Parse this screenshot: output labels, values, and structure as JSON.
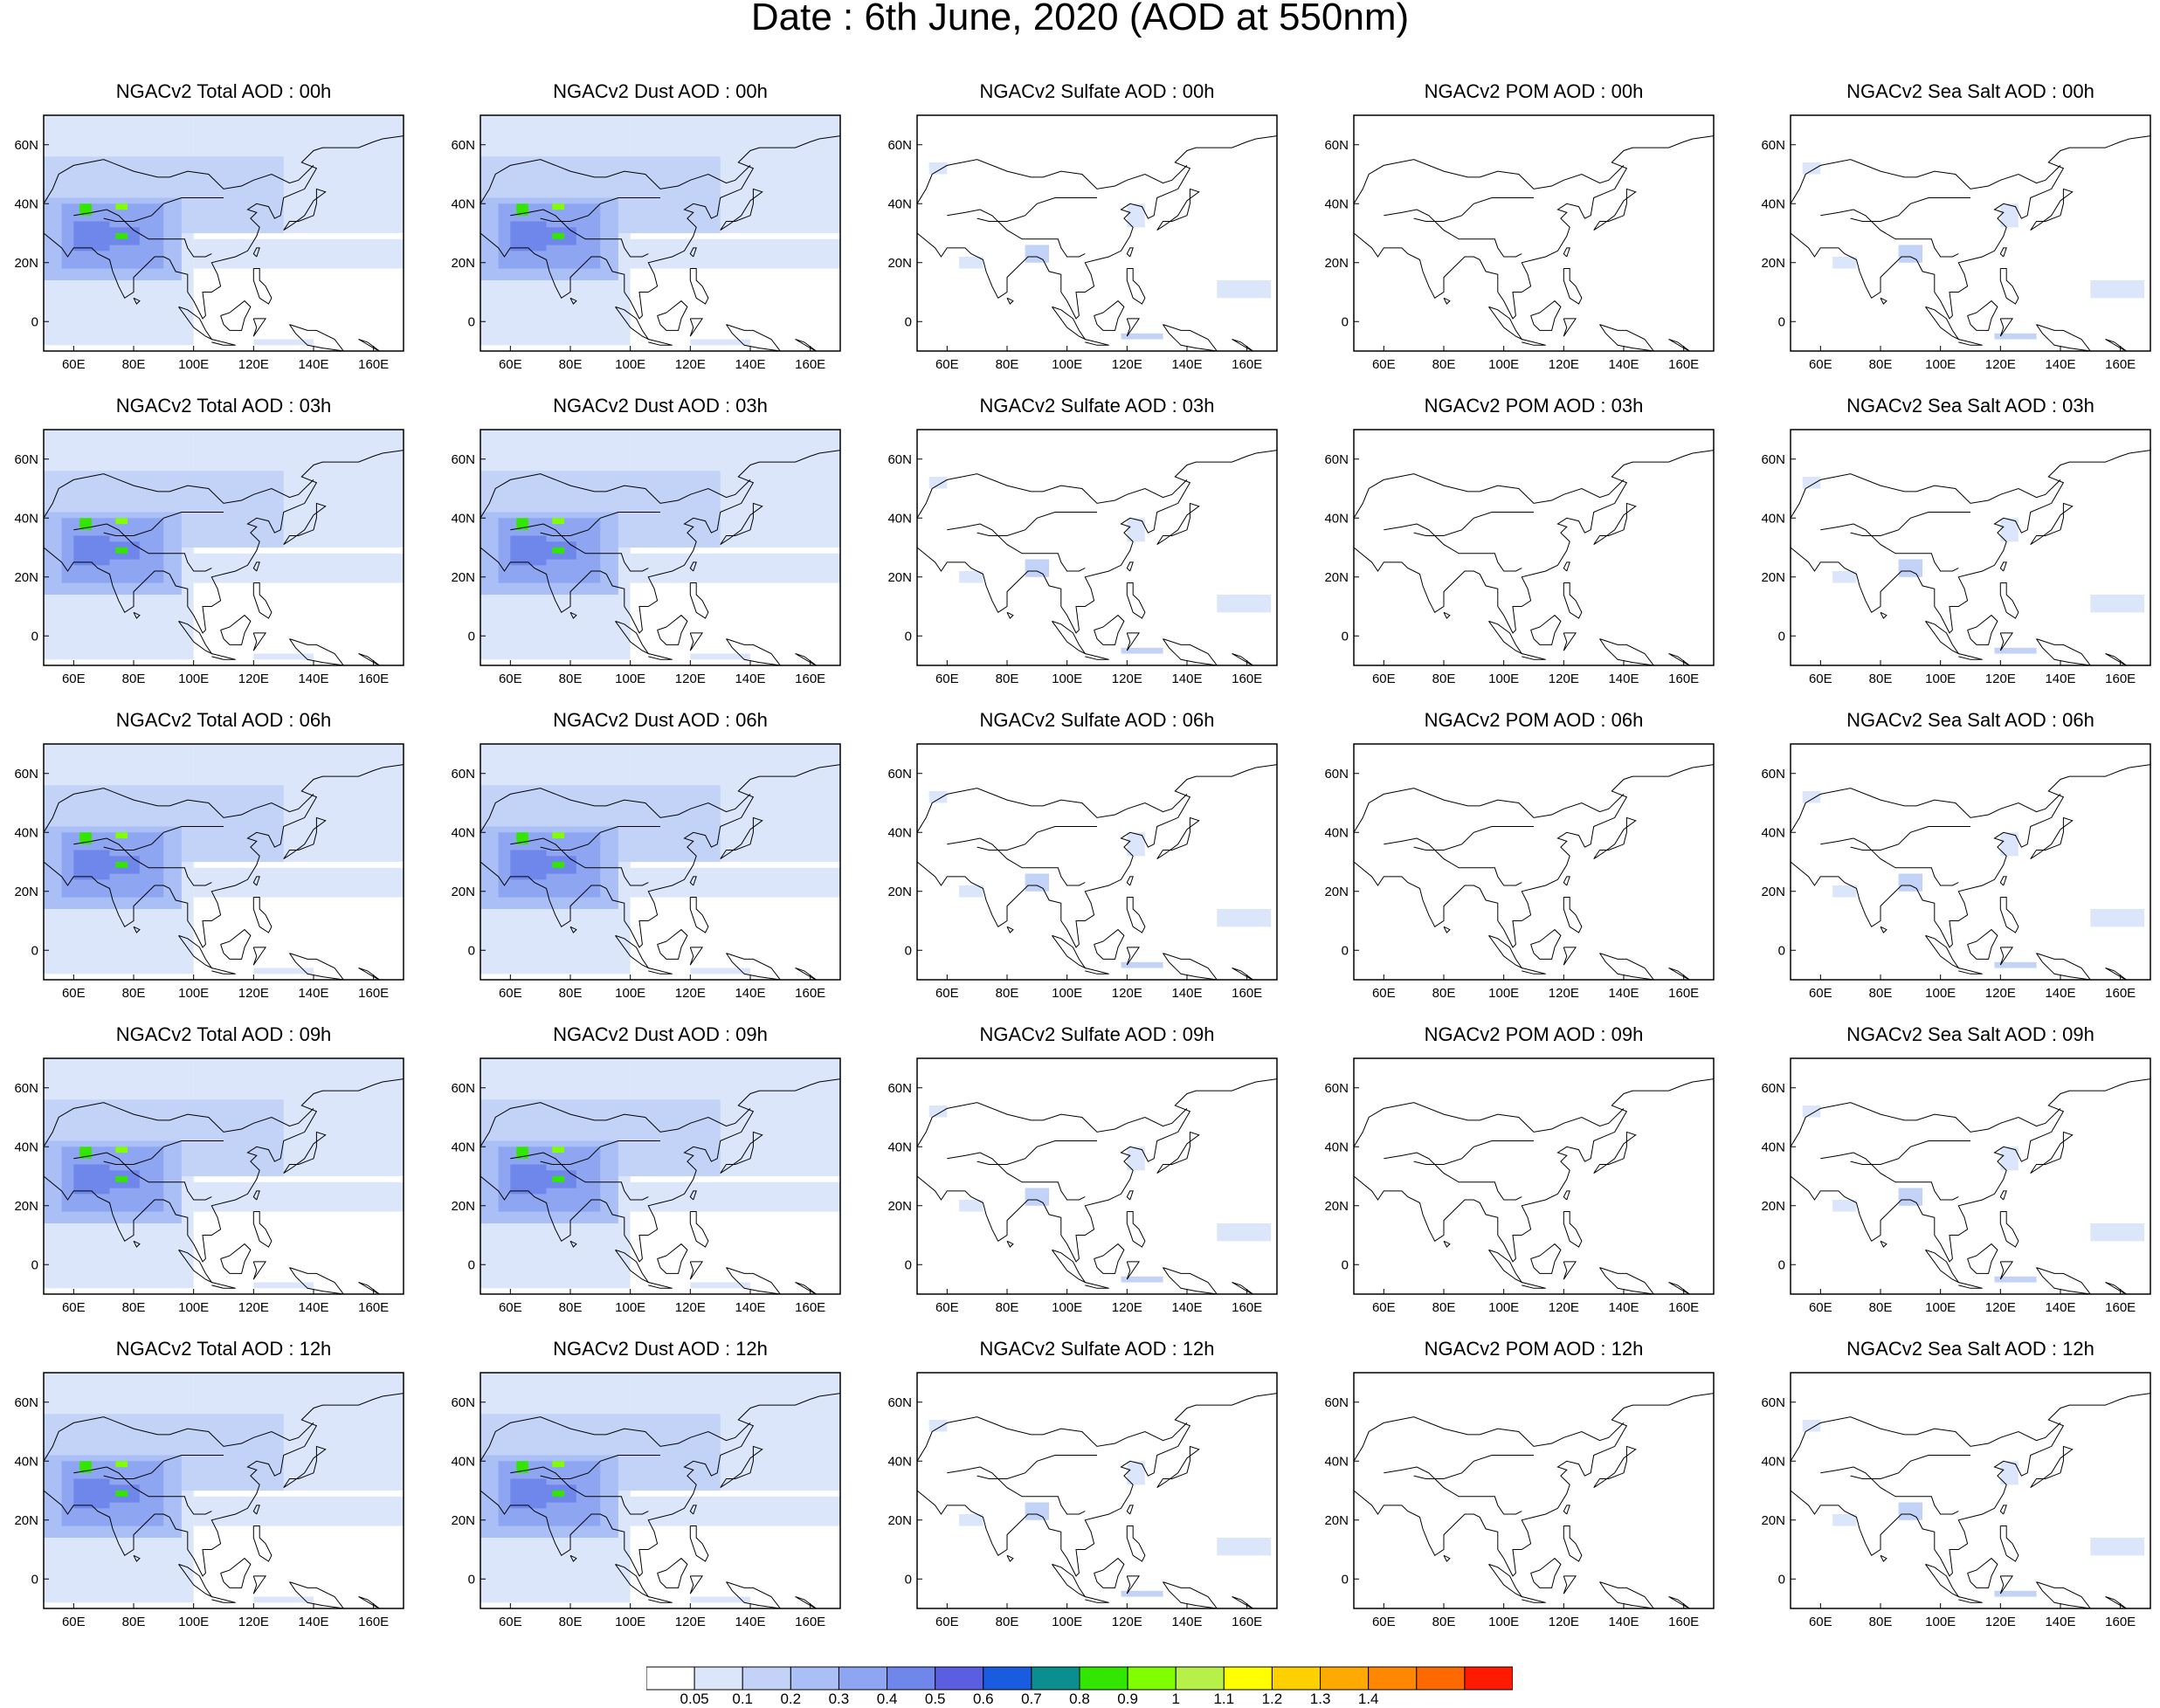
{
  "title": "Date : 6th June, 2020 (AOD at 550nm)",
  "columns": [
    "Total",
    "Dust",
    "Sulfate",
    "POM",
    "Sea Salt"
  ],
  "panels": [
    [
      "NGACv2 Total AOD : 00h",
      "NGACv2 Dust AOD : 00h",
      "NGACv2 Sulfate AOD : 00h",
      "NGACv2 POM AOD : 00h",
      "NGACv2 Sea Salt AOD : 00h"
    ],
    [
      "NGACv2 Total AOD : 03h",
      "NGACv2 Dust AOD : 03h",
      "NGACv2 Sulfate AOD : 03h",
      "NGACv2 POM AOD : 03h",
      "NGACv2 Sea Salt AOD : 03h"
    ],
    [
      "NGACv2 Total AOD : 06h",
      "NGACv2 Dust AOD : 06h",
      "NGACv2 Sulfate AOD : 06h",
      "NGACv2 POM AOD : 06h",
      "NGACv2 Sea Salt AOD : 06h"
    ],
    [
      "NGACv2 Total AOD : 09h",
      "NGACv2 Dust AOD : 09h",
      "NGACv2 Sulfate AOD : 09h",
      "NGACv2 POM AOD : 09h",
      "NGACv2 Sea Salt  AOD : 09h"
    ],
    [
      "NGACv2 Total AOD  : 12h",
      "NGACv2 Dust AOD : 12h",
      "NGACv2 Sulfate AOD : 12h",
      "NGACv2 POM  AOD : 12h",
      "NGACv2 Sea Salt  AOD : 12h"
    ]
  ],
  "lat_ticks": [
    "60N",
    "40N",
    "20N",
    "0"
  ],
  "lat_values": [
    60,
    40,
    20,
    0
  ],
  "lon_ticks_first_column": [
    "60E",
    "80E",
    "100E",
    "120E",
    "140E",
    "160E"
  ],
  "lon_ticks_other_columns": [
    "60E",
    "80E",
    "100E",
    "120E",
    "140E",
    "160E"
  ],
  "lon_values": [
    60,
    80,
    100,
    120,
    140,
    160
  ],
  "map_extent": {
    "lon": [
      50,
      170
    ],
    "lat": [
      -10,
      70
    ]
  },
  "colorbar": {
    "labels": [
      "0.05",
      "0.1",
      "0.2",
      "0.3",
      "0.4",
      "0.5",
      "0.6",
      "0.7",
      "0.8",
      "0.9",
      "1",
      "1.1",
      "1.2",
      "1.3",
      "1.4"
    ],
    "colors": [
      "#ffffff",
      "#dce6fb",
      "#c3d3f8",
      "#aabff5",
      "#8ea6f2",
      "#6f86ea",
      "#5a5ee0",
      "#1a5ce0",
      "#0a8e8e",
      "#33e600",
      "#80ff00",
      "#b8f04a",
      "#ffff00",
      "#ffd000",
      "#ffaa00",
      "#ff8800",
      "#ff6a00",
      "#ff1a00"
    ]
  },
  "coverage": {
    "Total": "broad",
    "Dust": "broad",
    "Sulfate": "sparse",
    "POM": "none",
    "Sea Salt": "sparse"
  }
}
